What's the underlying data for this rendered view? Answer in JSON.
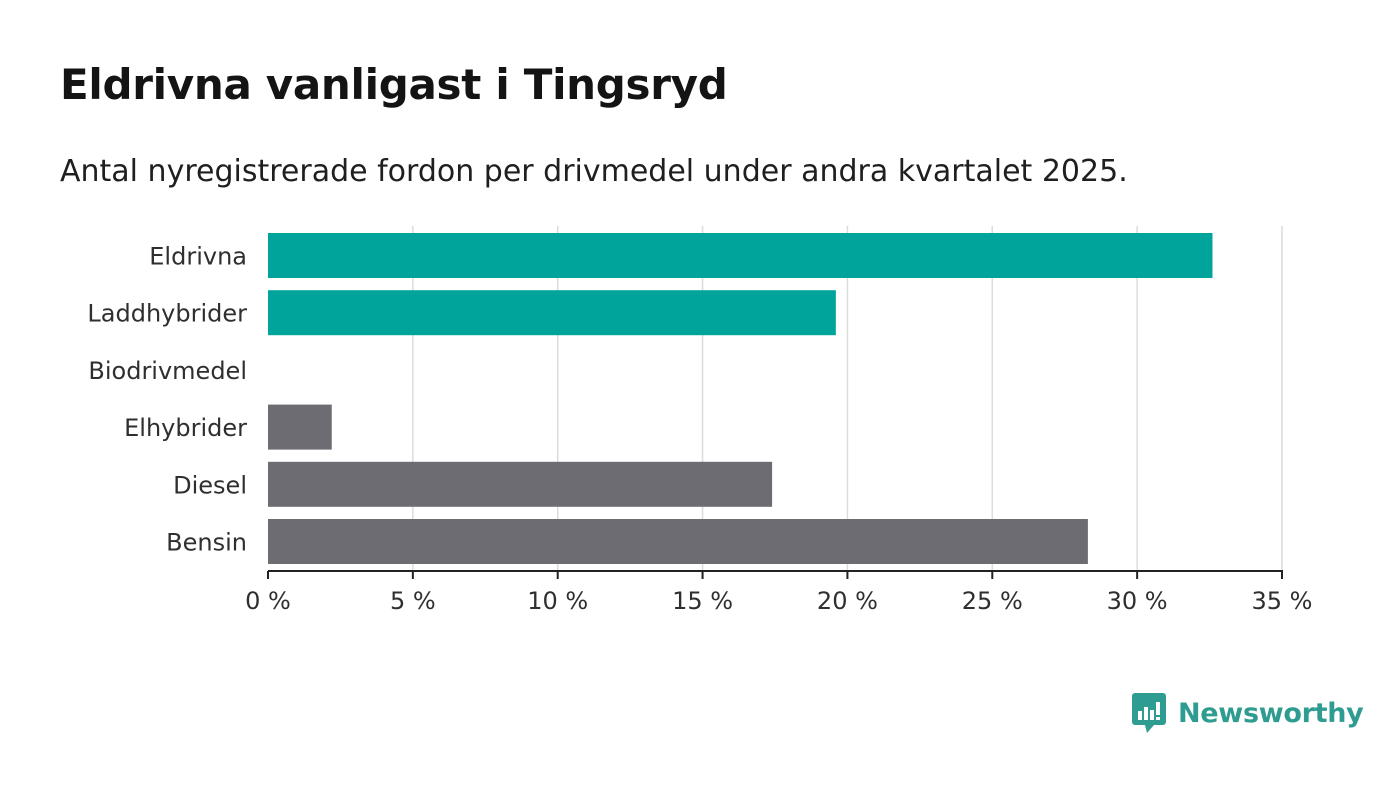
{
  "title": "Eldrivna vanligast i Tingsryd",
  "subtitle": "Antal nyregistrerade fordon per drivmedel under andra kvartalet 2025.",
  "brand": {
    "name": "Newsworthy",
    "icon": "newsworthy-logo-icon",
    "color": "#2f9c92"
  },
  "colors": {
    "highlight": "#00a49a",
    "default": "#6d6c72",
    "grid": "#dcdcdc",
    "axis": "#222222"
  },
  "chart_data": {
    "type": "bar",
    "orientation": "horizontal",
    "categories": [
      "Eldrivna",
      "Laddhybrider",
      "Biodrivmedel",
      "Elhybrider",
      "Diesel",
      "Bensin"
    ],
    "values": [
      32.6,
      19.6,
      0,
      2.2,
      17.4,
      28.3
    ],
    "highlighted": [
      true,
      true,
      true,
      false,
      false,
      false
    ],
    "xlim": [
      0,
      35
    ],
    "xticks": [
      0,
      5,
      10,
      15,
      20,
      25,
      30,
      35
    ],
    "tick_suffix": " %",
    "grid": true,
    "legend": "none"
  }
}
